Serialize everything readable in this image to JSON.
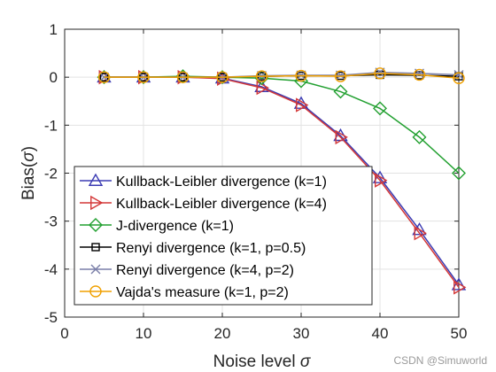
{
  "chart_data": {
    "type": "line",
    "title": "",
    "xlabel": "Noise level",
    "xlabel_symbol": "σ",
    "ylabel": "Bias(",
    "ylabel_symbol": "σ",
    "ylabel_close": ")",
    "xlim": [
      0,
      50
    ],
    "ylim": [
      -5,
      1
    ],
    "xticks": [
      0,
      10,
      20,
      30,
      40,
      50
    ],
    "yticks": [
      1,
      0,
      -1,
      -2,
      -3,
      -4,
      -5
    ],
    "grid": true,
    "legend_position": "bottom-left",
    "x": [
      5,
      10,
      15,
      20,
      25,
      30,
      35,
      40,
      45,
      50
    ],
    "series": [
      {
        "name": "Kullback-Leibler divergence (k=1)",
        "color": "#3b3bb3",
        "marker": "triangle-up",
        "values": [
          0.0,
          0.0,
          0.0,
          -0.02,
          -0.2,
          -0.55,
          -1.22,
          -2.1,
          -3.18,
          -4.33
        ]
      },
      {
        "name": "Kullback-Leibler divergence (k=4)",
        "color": "#d43838",
        "marker": "triangle-right",
        "values": [
          0.0,
          0.0,
          0.0,
          -0.03,
          -0.22,
          -0.58,
          -1.25,
          -2.15,
          -3.25,
          -4.38
        ]
      },
      {
        "name": "J-divergence (k=1)",
        "color": "#22a030",
        "marker": "diamond",
        "values": [
          0.0,
          0.0,
          0.02,
          0.0,
          -0.02,
          -0.08,
          -0.3,
          -0.65,
          -1.25,
          -2.0
        ]
      },
      {
        "name": "Renyi divergence (k=1, p=0.5)",
        "color": "#000000",
        "marker": "square",
        "values": [
          0.0,
          0.0,
          0.0,
          0.0,
          0.02,
          0.03,
          0.03,
          0.05,
          0.04,
          0.02
        ]
      },
      {
        "name": "Renyi divergence (k=4, p=2)",
        "color": "#7a7fa8",
        "marker": "x",
        "values": [
          0.0,
          0.0,
          0.0,
          0.0,
          0.03,
          0.04,
          0.04,
          0.1,
          0.08,
          0.05
        ]
      },
      {
        "name": "Vajda's measure (k=1, p=2)",
        "color": "#f0a000",
        "marker": "circle",
        "values": [
          0.0,
          0.0,
          0.0,
          0.0,
          0.02,
          0.03,
          0.02,
          0.08,
          0.05,
          -0.02
        ]
      }
    ]
  },
  "watermark": "CSDN @Simuworld"
}
